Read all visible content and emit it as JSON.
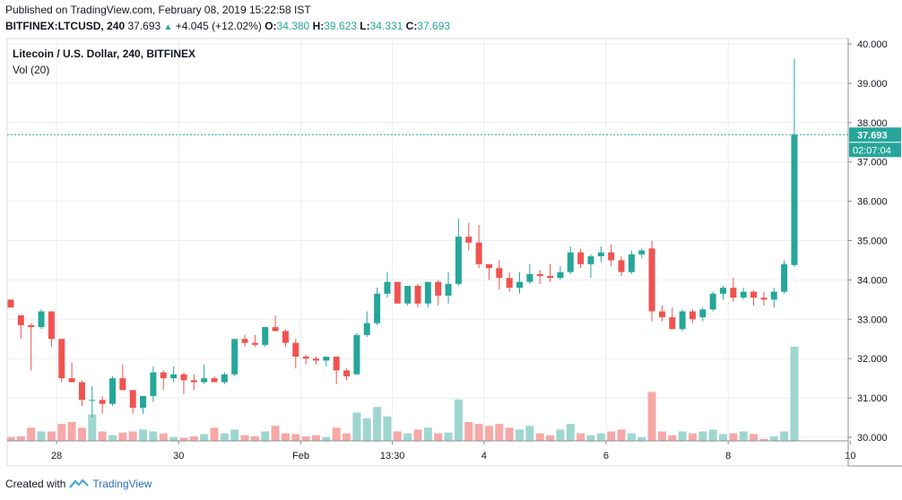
{
  "header": {
    "published": "Published on TradingView.com, February 08, 2019 15:22:58 IST",
    "symbol": "BITFINEX:LTCUSD, 240",
    "last": "37.693",
    "change": "+4.045 (+12.02%)",
    "o_label": "O:",
    "o": "34.380",
    "h_label": "H:",
    "h": "39.623",
    "l_label": "L:",
    "l": "34.331",
    "c_label": "C:",
    "c": "37.693"
  },
  "legend": {
    "title": "Litecoin / U.S. Dollar, 240, BITFINEX",
    "vol": "Vol (20)"
  },
  "footer": {
    "created": "Created with",
    "brand": "TradingView"
  },
  "colors": {
    "up": "#26a69a",
    "down": "#ef5350",
    "vol_up": "#9fd6d0",
    "vol_down": "#f7a9a7",
    "grid": "#e9eef3"
  },
  "chart_data": {
    "type": "candlestick",
    "y_ticks": [
      "40.000",
      "39.000",
      "38.000",
      "37.000",
      "36.000",
      "35.000",
      "34.000",
      "33.000",
      "32.000",
      "31.000",
      "30.000"
    ],
    "y_range": [
      29.9,
      40.2
    ],
    "x_ticks": [
      {
        "label": "28",
        "i": 4.5
      },
      {
        "label": "30",
        "i": 16.5
      },
      {
        "label": "Feb",
        "i": 28.5
      },
      {
        "label": "13:30",
        "i": 37.5
      },
      {
        "label": "4",
        "i": 46.5
      },
      {
        "label": "6",
        "i": 58.5
      },
      {
        "label": "8",
        "i": 70.5
      },
      {
        "label": "10",
        "i": 82.5
      }
    ],
    "last_price": 37.693,
    "last_price_label": "37.693",
    "countdown_label": "02:07:04",
    "candles": [
      [
        33.5,
        33.5,
        33.3,
        33.3,
        0.1
      ],
      [
        33.1,
        33.1,
        32.5,
        32.85,
        0.12
      ],
      [
        32.85,
        32.9,
        31.7,
        32.8,
        0.35
      ],
      [
        32.8,
        33.25,
        32.75,
        33.2,
        0.25
      ],
      [
        33.2,
        33.2,
        32.3,
        32.5,
        0.25
      ],
      [
        32.5,
        32.5,
        31.4,
        31.5,
        0.45
      ],
      [
        31.5,
        31.9,
        31.4,
        31.4,
        0.5
      ],
      [
        31.4,
        31.45,
        30.8,
        30.95,
        0.35
      ],
      [
        30.95,
        31.3,
        30.5,
        30.95,
        0.7
      ],
      [
        30.95,
        31.05,
        30.6,
        30.85,
        0.25
      ],
      [
        30.85,
        31.55,
        30.8,
        31.5,
        0.15
      ],
      [
        31.5,
        31.85,
        31.2,
        31.2,
        0.22
      ],
      [
        31.2,
        31.2,
        30.6,
        30.75,
        0.25
      ],
      [
        30.75,
        31.05,
        30.6,
        31.05,
        0.3
      ],
      [
        31.05,
        31.8,
        30.9,
        31.65,
        0.25
      ],
      [
        31.65,
        31.7,
        31.2,
        31.5,
        0.2
      ],
      [
        31.5,
        31.8,
        31.4,
        31.6,
        0.1
      ],
      [
        31.6,
        31.65,
        31.1,
        31.45,
        0.08
      ],
      [
        31.45,
        31.6,
        31.2,
        31.4,
        0.12
      ],
      [
        31.4,
        31.85,
        31.35,
        31.5,
        0.18
      ],
      [
        31.5,
        31.55,
        31.4,
        31.4,
        0.35
      ],
      [
        31.4,
        31.65,
        31.35,
        31.6,
        0.2
      ],
      [
        31.6,
        32.5,
        31.55,
        32.5,
        0.3
      ],
      [
        32.5,
        32.6,
        32.3,
        32.4,
        0.15
      ],
      [
        32.4,
        32.6,
        32.3,
        32.35,
        0.12
      ],
      [
        32.35,
        32.8,
        32.3,
        32.8,
        0.25
      ],
      [
        32.8,
        33.1,
        32.7,
        32.7,
        0.4
      ],
      [
        32.7,
        32.75,
        32.3,
        32.4,
        0.2
      ],
      [
        32.4,
        32.5,
        31.75,
        32.05,
        0.18
      ],
      [
        32.05,
        32.1,
        31.85,
        32.0,
        0.12
      ],
      [
        32.0,
        32.05,
        31.85,
        31.95,
        0.15
      ],
      [
        31.95,
        32.05,
        31.8,
        32.05,
        0.1
      ],
      [
        32.05,
        32.05,
        31.35,
        31.7,
        0.35
      ],
      [
        31.7,
        31.75,
        31.45,
        31.55,
        0.2
      ],
      [
        31.6,
        32.65,
        31.6,
        32.6,
        0.75
      ],
      [
        32.6,
        33.2,
        32.55,
        32.9,
        0.6
      ],
      [
        32.9,
        33.8,
        32.85,
        33.65,
        0.9
      ],
      [
        33.65,
        34.2,
        33.55,
        33.95,
        0.65
      ],
      [
        33.95,
        33.95,
        33.4,
        33.4,
        0.25
      ],
      [
        33.4,
        33.85,
        33.35,
        33.85,
        0.2
      ],
      [
        33.85,
        33.9,
        33.3,
        33.4,
        0.3
      ],
      [
        33.4,
        33.95,
        33.3,
        33.95,
        0.35
      ],
      [
        33.95,
        34.0,
        33.35,
        33.6,
        0.2
      ],
      [
        33.6,
        34.2,
        33.4,
        33.9,
        0.22
      ],
      [
        33.9,
        35.55,
        33.85,
        35.1,
        1.1
      ],
      [
        35.1,
        35.45,
        34.75,
        34.95,
        0.5
      ],
      [
        34.95,
        35.4,
        34.3,
        34.4,
        0.45
      ],
      [
        34.4,
        34.4,
        34.0,
        34.3,
        0.4
      ],
      [
        34.3,
        34.5,
        33.75,
        34.05,
        0.45
      ],
      [
        34.05,
        34.2,
        33.7,
        33.8,
        0.35
      ],
      [
        33.8,
        34.2,
        33.65,
        33.95,
        0.3
      ],
      [
        33.95,
        34.4,
        33.9,
        34.15,
        0.4
      ],
      [
        34.15,
        34.25,
        33.9,
        34.1,
        0.2
      ],
      [
        34.1,
        34.4,
        33.95,
        34.05,
        0.15
      ],
      [
        34.05,
        34.35,
        34.0,
        34.2,
        0.3
      ],
      [
        34.2,
        34.85,
        34.15,
        34.7,
        0.45
      ],
      [
        34.7,
        34.8,
        34.3,
        34.4,
        0.2
      ],
      [
        34.4,
        34.65,
        34.05,
        34.6,
        0.15
      ],
      [
        34.6,
        34.85,
        34.45,
        34.7,
        0.2
      ],
      [
        34.7,
        34.9,
        34.35,
        34.5,
        0.25
      ],
      [
        34.5,
        34.6,
        34.1,
        34.2,
        0.3
      ],
      [
        34.2,
        34.75,
        34.15,
        34.65,
        0.2
      ],
      [
        34.65,
        34.8,
        34.55,
        34.75,
        0.1
      ],
      [
        34.8,
        35.0,
        32.95,
        33.2,
        1.3
      ],
      [
        33.2,
        33.35,
        32.95,
        33.05,
        0.25
      ],
      [
        33.05,
        33.3,
        32.75,
        32.75,
        0.15
      ],
      [
        32.75,
        33.25,
        32.7,
        33.2,
        0.25
      ],
      [
        33.2,
        33.25,
        32.9,
        33.0,
        0.2
      ],
      [
        33.05,
        33.3,
        32.95,
        33.25,
        0.25
      ],
      [
        33.25,
        33.7,
        33.2,
        33.65,
        0.3
      ],
      [
        33.65,
        33.85,
        33.5,
        33.8,
        0.18
      ],
      [
        33.8,
        34.05,
        33.45,
        33.55,
        0.2
      ],
      [
        33.55,
        33.8,
        33.5,
        33.7,
        0.25
      ],
      [
        33.7,
        33.75,
        33.35,
        33.55,
        0.18
      ],
      [
        33.55,
        33.7,
        33.35,
        33.5,
        0.05
      ],
      [
        33.5,
        33.8,
        33.3,
        33.7,
        0.12
      ],
      [
        33.7,
        34.5,
        33.65,
        34.4,
        0.25
      ],
      [
        34.38,
        39.623,
        34.331,
        37.693,
        2.5
      ]
    ]
  }
}
